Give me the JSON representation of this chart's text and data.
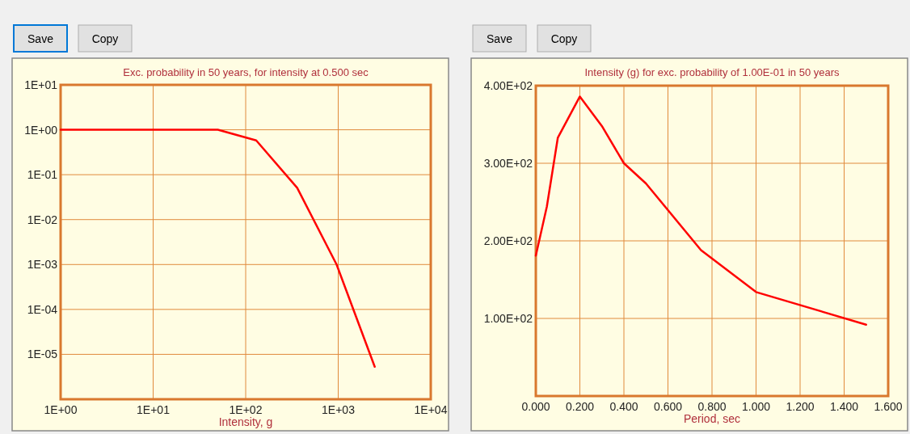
{
  "chart_data": [
    {
      "type": "line",
      "title": "Exc. probability in 50 years, for intensity at 0.500 sec",
      "xlabel": "Intensity, g",
      "log": "xy",
      "grid": true,
      "annotations": [
        "Save",
        "Copy"
      ],
      "x": [
        1,
        50,
        130,
        360,
        960,
        2480
      ],
      "series": [
        {
          "color": "#ff0000",
          "values": [
            1,
            1,
            0.58,
            0.051,
            0.001,
            5.3e-06
          ]
        }
      ],
      "xlim": [
        1,
        10000
      ],
      "ylim": [
        1e-06,
        10
      ],
      "xticks": [
        {
          "value": 1,
          "label": "1E+00"
        },
        {
          "value": 10,
          "label": "1E+01"
        },
        {
          "value": 100,
          "label": "1E+02"
        },
        {
          "value": 1000,
          "label": "1E+03"
        },
        {
          "value": 10000,
          "label": "1E+04"
        }
      ],
      "yticks": [
        {
          "value": 1e-06,
          "label": null
        },
        {
          "value": 1e-05,
          "label": "1E-05"
        },
        {
          "value": 0.0001,
          "label": "1E-04"
        },
        {
          "value": 0.001,
          "label": "1E-03"
        },
        {
          "value": 0.01,
          "label": "1E-02"
        },
        {
          "value": 0.1,
          "label": "1E-01"
        },
        {
          "value": 1,
          "label": "1E+00"
        },
        {
          "value": 10,
          "label": "1E+01"
        }
      ]
    },
    {
      "type": "line",
      "title": "Intensity (g) for exc. probability of 1.00E-01 in 50 years",
      "xlabel": "Period, sec",
      "grid": true,
      "annotations": [
        "Save",
        "Copy"
      ],
      "x": [
        0,
        0.05,
        0.1,
        0.2,
        0.3,
        0.4,
        0.5,
        0.75,
        1.0,
        1.5
      ],
      "series": [
        {
          "color": "#ff0000",
          "values": [
            181,
            244,
            333,
            386,
            348,
            300,
            274,
            188,
            134,
            92
          ]
        }
      ],
      "xlim": [
        0,
        1.6
      ],
      "ylim": [
        0,
        400
      ],
      "xticks": [
        {
          "value": 0,
          "label": "0.000"
        },
        {
          "value": 0.2,
          "label": "0.200"
        },
        {
          "value": 0.4,
          "label": "0.400"
        },
        {
          "value": 0.6,
          "label": "0.600"
        },
        {
          "value": 0.8,
          "label": "0.800"
        },
        {
          "value": 1.0,
          "label": "1.000"
        },
        {
          "value": 1.2,
          "label": "1.200"
        },
        {
          "value": 1.4,
          "label": "1.400"
        },
        {
          "value": 1.6,
          "label": "1.600"
        }
      ],
      "yticks": [
        {
          "value": 0,
          "label": null
        },
        {
          "value": 100,
          "label": "1.00E+02"
        },
        {
          "value": 200,
          "label": "2.00E+02"
        },
        {
          "value": 300,
          "label": "3.00E+02"
        },
        {
          "value": 400,
          "label": "4.00E+02"
        }
      ]
    }
  ]
}
